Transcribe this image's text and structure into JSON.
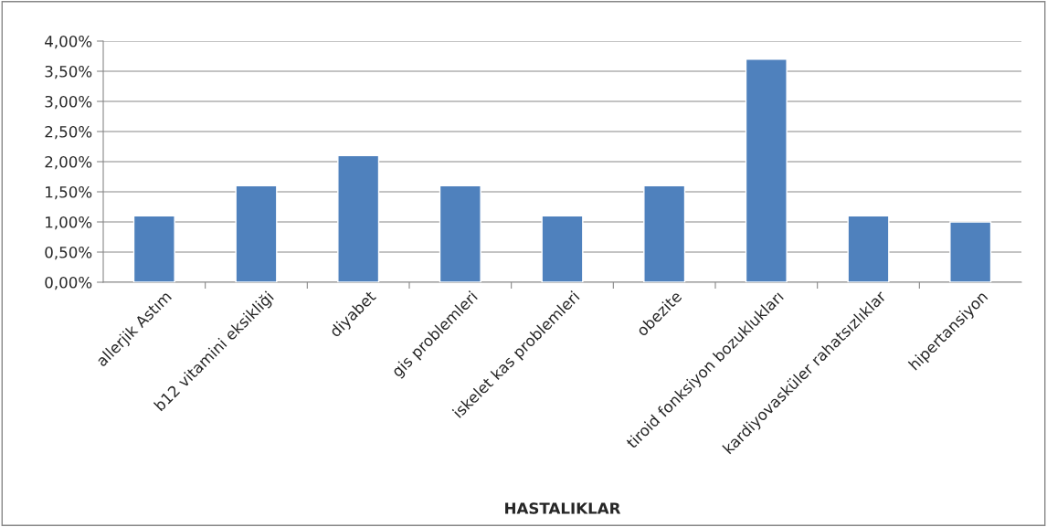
{
  "chart_data": {
    "type": "bar",
    "xlabel": "HASTALIKLAR",
    "categories": [
      "allerjik Astım",
      "b12 vitamini eksikliği",
      "diyabet",
      "gis problemleri",
      "iskelet kas problemleri",
      "obezite",
      "tiroid fonksiyon bozuklukları",
      "kardiyovasküler rahatsızlıklar",
      "hipertansiyon"
    ],
    "values": [
      1.1,
      1.6,
      2.1,
      1.6,
      1.1,
      1.6,
      3.7,
      1.1,
      1.0
    ],
    "color": "#4f81bd",
    "ylim": [
      0,
      4
    ],
    "yticks": [
      {
        "value": 0,
        "label": "0,00%"
      },
      {
        "value": 0.5,
        "label": "0,50%"
      },
      {
        "value": 1,
        "label": "1,00%"
      },
      {
        "value": 1.5,
        "label": "1,50%"
      },
      {
        "value": 2,
        "label": "2,00%"
      },
      {
        "value": 2.5,
        "label": "2,50%"
      },
      {
        "value": 3,
        "label": "3,00%"
      },
      {
        "value": 3.5,
        "label": "3,50%"
      },
      {
        "value": 4,
        "label": "4,00%"
      }
    ],
    "grid": "y"
  }
}
